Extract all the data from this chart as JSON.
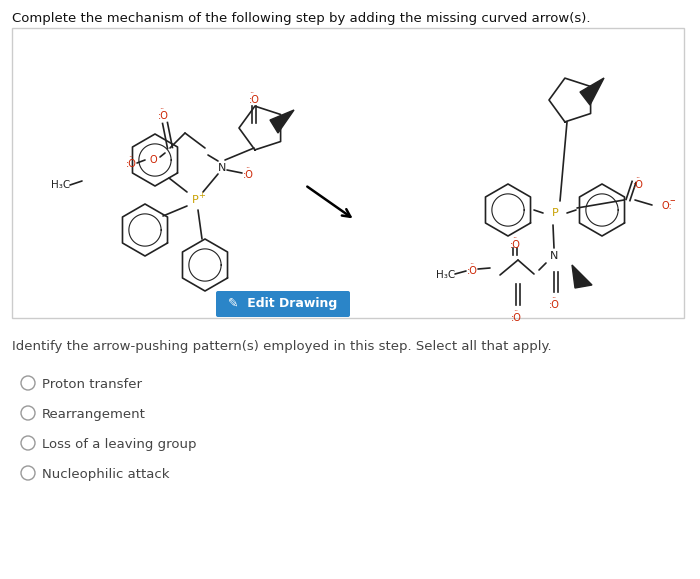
{
  "title": "Complete the mechanism of the following step by adding the missing curved arrow(s).",
  "edit_button_text": "✓ Edit Drawing",
  "edit_button_color": "#2b85c8",
  "edit_button_text_color": "white",
  "question_text": "Identify the arrow-pushing pattern(s) employed in this step. Select all that apply.",
  "options": [
    "Proton transfer",
    "Rearrangement",
    "Loss of a leaving group",
    "Nucleophilic attack"
  ],
  "bg_color": "white",
  "text_color": "#444444",
  "title_color": "#111111",
  "box_edge_color": "#cccccc",
  "line_color": "#222222",
  "red_color": "#cc2200",
  "gold_color": "#c8a000",
  "figsize": [
    7.0,
    5.79
  ],
  "dpi": 100
}
